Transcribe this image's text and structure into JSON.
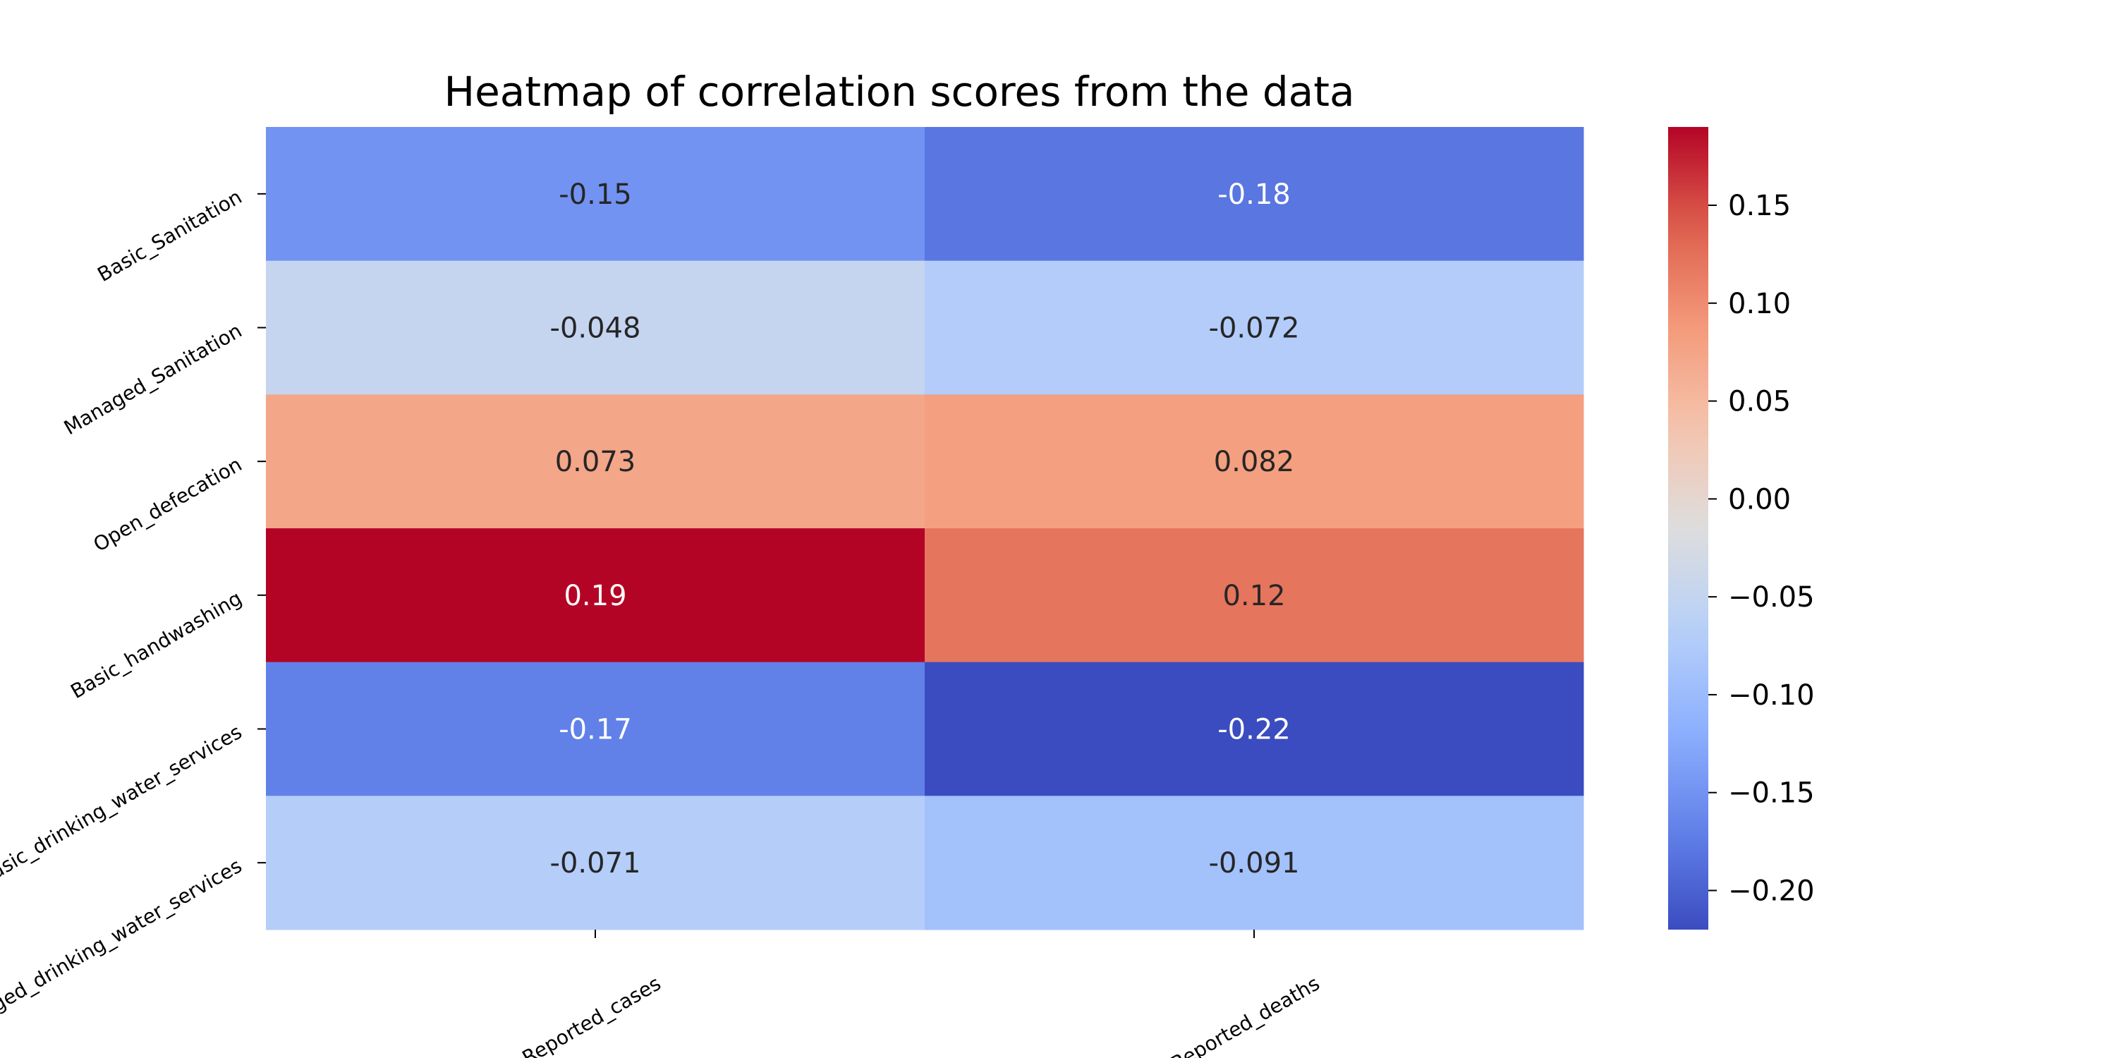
{
  "chart_data": {
    "type": "heatmap",
    "title": "Heatmap of correlation scores from the data",
    "xlabel": "",
    "ylabel": "",
    "rows": [
      "Basic_Sanitation",
      "Managed_Sanitation",
      "Open_defecation",
      "Basic_handwashing",
      "Basic_drinking_water_services",
      "Managed_drinking_water_services"
    ],
    "columns": [
      "Reported_cases",
      "Reported_deaths"
    ],
    "values": [
      [
        -0.15,
        -0.18
      ],
      [
        -0.048,
        -0.072
      ],
      [
        0.073,
        0.082
      ],
      [
        0.19,
        0.12
      ],
      [
        -0.17,
        -0.22
      ],
      [
        -0.071,
        -0.091
      ]
    ],
    "value_labels": [
      [
        "-0.15",
        "-0.18"
      ],
      [
        "-0.048",
        "-0.072"
      ],
      [
        "0.073",
        "0.082"
      ],
      [
        "0.19",
        "0.12"
      ],
      [
        "-0.17",
        "-0.22"
      ],
      [
        "-0.071",
        "-0.091"
      ]
    ],
    "colormap": "coolwarm",
    "colorbar": {
      "min": -0.22,
      "max": 0.19,
      "ticks": [
        0.15,
        0.1,
        0.05,
        0.0,
        -0.05,
        -0.1,
        -0.15,
        -0.2
      ],
      "tick_labels": [
        "0.15",
        "0.10",
        "0.05",
        "0.00",
        "−0.05",
        "−0.10",
        "−0.15",
        "−0.20"
      ],
      "placement": "right"
    },
    "grid": false
  }
}
